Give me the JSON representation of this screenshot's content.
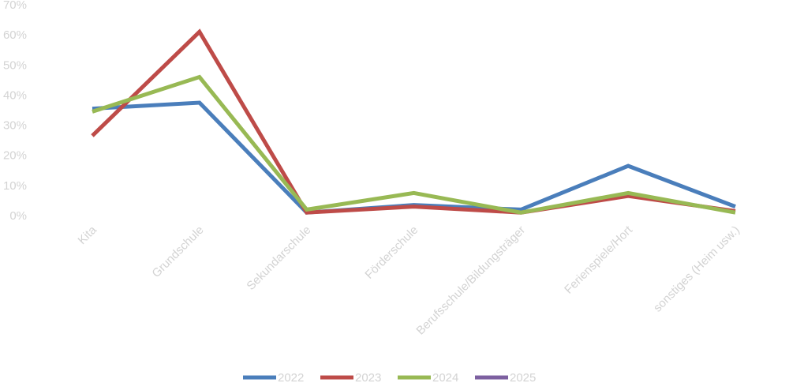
{
  "chart_data": {
    "type": "line",
    "categories": [
      "Kita",
      "Grundschule",
      "Sekundarschule",
      "Förderschule",
      "Berufsschule/Bildungsträger",
      "Ferienspiele/Hort",
      "sonstiges (Heim usw.)"
    ],
    "y_ticks": [
      "0%",
      "10%",
      "20%",
      "30%",
      "40%",
      "50%",
      "60%",
      "70%"
    ],
    "ylim": [
      0,
      70
    ],
    "y_unit": "%",
    "legend_position": "bottom",
    "grid": false,
    "series": [
      {
        "name": "2022",
        "color": "#4a7ebb",
        "values": [
          35.5,
          37.5,
          1,
          3.5,
          2,
          16.5,
          3
        ]
      },
      {
        "name": "2023",
        "color": "#be4b48",
        "values": [
          26.5,
          61,
          1,
          3,
          1,
          6.5,
          1.5
        ]
      },
      {
        "name": "2024",
        "color": "#98b954",
        "values": [
          34.5,
          46,
          2,
          7.5,
          1,
          7.5,
          1
        ]
      },
      {
        "name": "2025",
        "color": "#7d60a0",
        "values": [
          null,
          null,
          null,
          null,
          null,
          null,
          null
        ]
      }
    ]
  }
}
